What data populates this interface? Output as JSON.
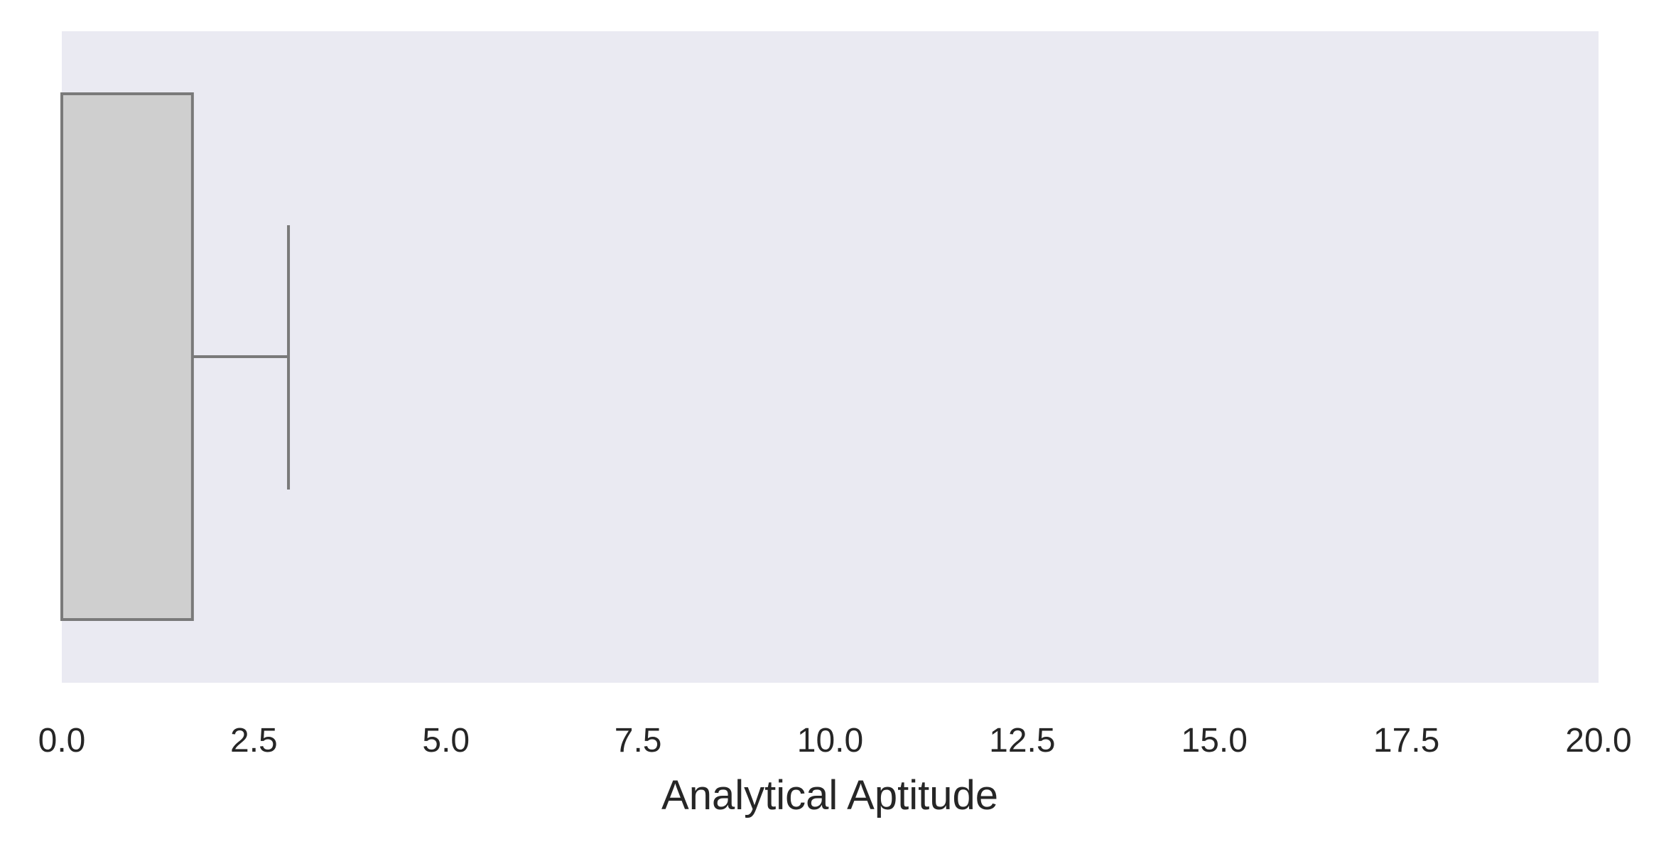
{
  "chart_data": {
    "type": "box",
    "orientation": "horizontal",
    "title": "",
    "xlabel": "Analytical Aptitude",
    "ylabel": "",
    "xlim": [
      0,
      20
    ],
    "xticks": [
      0,
      2.5,
      5,
      7.5,
      10,
      12.5,
      15,
      17.5,
      20
    ],
    "xtick_labels": [
      "0.0",
      "2.5",
      "5.0",
      "7.5",
      "10.0",
      "12.5",
      "15.0",
      "17.5",
      "20.0"
    ],
    "grid": false,
    "legend": "none",
    "boxes": [
      {
        "whisker_low": 0,
        "q1": 0,
        "median": 0,
        "q3": 1.7,
        "whisker_high": 2.95
      }
    ],
    "colors": {
      "plot_background": "#eaeaf2",
      "box_fill": "#cfcfcf",
      "box_edge": "#7a7a7a",
      "text": "#262626"
    }
  }
}
